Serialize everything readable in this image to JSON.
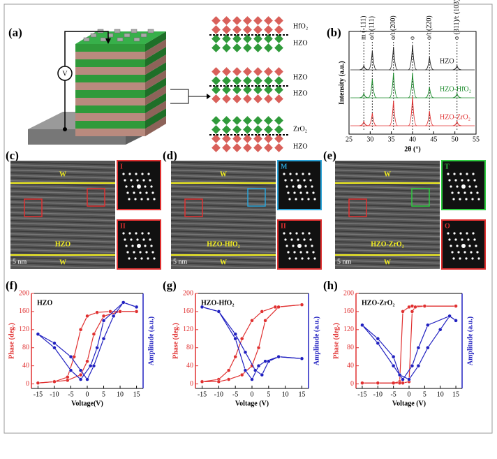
{
  "panels": {
    "a": {
      "label": "(a)",
      "voltmeter": "V",
      "layers": [
        "HfO₂",
        "HZO",
        "HZO",
        "HZO",
        "ZrO₂",
        "HZO"
      ]
    },
    "b": {
      "label": "(b)",
      "ylabel": "Intensity (a.u.)",
      "xlabel": "2θ (°)",
      "xlim": [
        25,
        55
      ],
      "xticks": [
        25,
        30,
        35,
        40,
        45,
        50,
        55
      ],
      "peaks": [
        28.5,
        30.5,
        35.5,
        40,
        44,
        50.5
      ],
      "peak_labels": [
        "m (-111)",
        "o/t (111)",
        "o/t (200)",
        "o",
        "o/t (220)",
        "o (311)/t (103)"
      ],
      "series": [
        {
          "name": "HZO",
          "color": "#222222",
          "values": [
            0.1,
            0.45,
            0.55,
            0.6,
            0.3,
            0.1
          ]
        },
        {
          "name": "HZO-HfO₂",
          "color": "#1a8a2a",
          "values": [
            0.1,
            0.45,
            0.6,
            0.6,
            0.25,
            0.1
          ]
        },
        {
          "name": "HZO-ZrO₂",
          "color": "#e03030",
          "values": [
            0.1,
            0.3,
            0.6,
            0.7,
            0.35,
            0.1
          ]
        }
      ]
    },
    "c": {
      "label": "(c)",
      "electrode": "W",
      "film": "HZO",
      "scale": "5 nm",
      "fft": [
        "I",
        "II"
      ]
    },
    "d": {
      "label": "(d)",
      "electrode": "W",
      "film": "HZO-HfO₂",
      "scale": "5 nm",
      "fft": [
        "M",
        "II"
      ]
    },
    "e": {
      "label": "(e)",
      "electrode": "W",
      "film": "HZO-ZrO₂",
      "scale": "5 nm",
      "fft": [
        "T",
        "O"
      ]
    },
    "f": {
      "label": "(f)",
      "title": "HZO",
      "xlabel": "Voltage(V)",
      "ylabel": "Phase (deg.)",
      "y2label": "Amplitude (a.u.)",
      "xlim": [
        -17,
        17
      ],
      "xticks": [
        -15,
        -10,
        -5,
        0,
        5,
        10,
        15
      ],
      "ylim": [
        -10,
        200
      ],
      "yticks": [
        0,
        40,
        80,
        120,
        160,
        200
      ],
      "y2lim": [
        -0.05,
        1
      ],
      "phase": [
        {
          "x": [
            -15,
            -10,
            -6,
            -4,
            -2,
            0,
            3,
            7,
            15
          ],
          "values": [
            2,
            5,
            15,
            60,
            120,
            150,
            158,
            160,
            160
          ]
        },
        {
          "x": [
            15,
            10,
            5,
            2,
            0,
            -2,
            -6,
            -10,
            -15
          ],
          "values": [
            160,
            160,
            150,
            110,
            50,
            20,
            8,
            5,
            2
          ]
        }
      ],
      "amplitude": [
        {
          "x": [
            -15,
            -10,
            -5,
            -2,
            0,
            2,
            5,
            8,
            11,
            15
          ],
          "values": [
            0.55,
            0.45,
            0.3,
            0.15,
            0.05,
            0.2,
            0.5,
            0.75,
            0.9,
            0.85
          ]
        },
        {
          "x": [
            15,
            11,
            5,
            3,
            1,
            -2,
            -5,
            -10,
            -15
          ],
          "values": [
            0.85,
            0.9,
            0.7,
            0.4,
            0.2,
            0.05,
            0.15,
            0.4,
            0.55
          ]
        }
      ]
    },
    "g": {
      "label": "(g)",
      "title": "HZO-HfO₂",
      "xlabel": "Voltage (V)",
      "ylabel": "Phase (deg.)",
      "y2label": "Amplitude (a.u.)",
      "xlim": [
        -17,
        17
      ],
      "xticks": [
        -15,
        -10,
        -5,
        0,
        5,
        10,
        15
      ],
      "ylim": [
        -10,
        200
      ],
      "yticks": [
        0,
        40,
        80,
        120,
        160,
        200
      ],
      "y2lim": [
        -0.05,
        1
      ],
      "phase": [
        {
          "x": [
            -15,
            -10,
            -7,
            -5,
            -3,
            0,
            3,
            7,
            15
          ],
          "values": [
            5,
            10,
            30,
            60,
            100,
            140,
            160,
            170,
            175
          ]
        },
        {
          "x": [
            15,
            8,
            4,
            2,
            0,
            -3,
            -7,
            -10,
            -15
          ],
          "values": [
            175,
            170,
            140,
            80,
            40,
            20,
            10,
            5,
            5
          ]
        }
      ],
      "amplitude": [
        {
          "x": [
            -15,
            -10,
            -5,
            -2,
            0,
            2,
            4,
            8,
            15
          ],
          "values": [
            0.85,
            0.8,
            0.5,
            0.15,
            0.05,
            0.2,
            0.25,
            0.3,
            0.28
          ]
        },
        {
          "x": [
            15,
            8,
            5,
            3,
            1,
            -2,
            -5,
            -10,
            -15
          ],
          "values": [
            0.28,
            0.3,
            0.25,
            0.1,
            0.15,
            0.35,
            0.55,
            0.8,
            0.85
          ]
        }
      ]
    },
    "h": {
      "label": "(h)",
      "title": "HZO-ZrO₂",
      "xlabel": "Voltage (V)",
      "ylabel": "Phase (deg.)",
      "y2label": "Amplitude (a.u.)",
      "xlim": [
        -17,
        17
      ],
      "xticks": [
        -15,
        -10,
        -5,
        0,
        5,
        10,
        15
      ],
      "ylim": [
        -10,
        200
      ],
      "yticks": [
        0,
        40,
        80,
        120,
        160,
        200
      ],
      "y2lim": [
        -0.05,
        1
      ],
      "phase": [
        {
          "x": [
            -15,
            -10,
            -5,
            -3,
            -2,
            0,
            1,
            5,
            15
          ],
          "values": [
            2,
            2,
            2,
            5,
            160,
            170,
            172,
            172,
            172
          ]
        },
        {
          "x": [
            15,
            5,
            2,
            1,
            0,
            -2,
            -3,
            -10,
            -15
          ],
          "values": [
            172,
            172,
            170,
            160,
            5,
            2,
            2,
            2,
            2
          ]
        }
      ],
      "amplitude": [
        {
          "x": [
            -15,
            -10,
            -5,
            -3,
            0,
            3,
            6,
            10,
            13,
            15
          ],
          "values": [
            0.65,
            0.5,
            0.3,
            0.1,
            0.05,
            0.2,
            0.4,
            0.6,
            0.75,
            0.7
          ]
        },
        {
          "x": [
            15,
            13,
            6,
            3,
            1,
            -2,
            -5,
            -10,
            -15
          ],
          "values": [
            0.7,
            0.75,
            0.65,
            0.4,
            0.2,
            0.05,
            0.2,
            0.45,
            0.65
          ]
        }
      ]
    }
  }
}
